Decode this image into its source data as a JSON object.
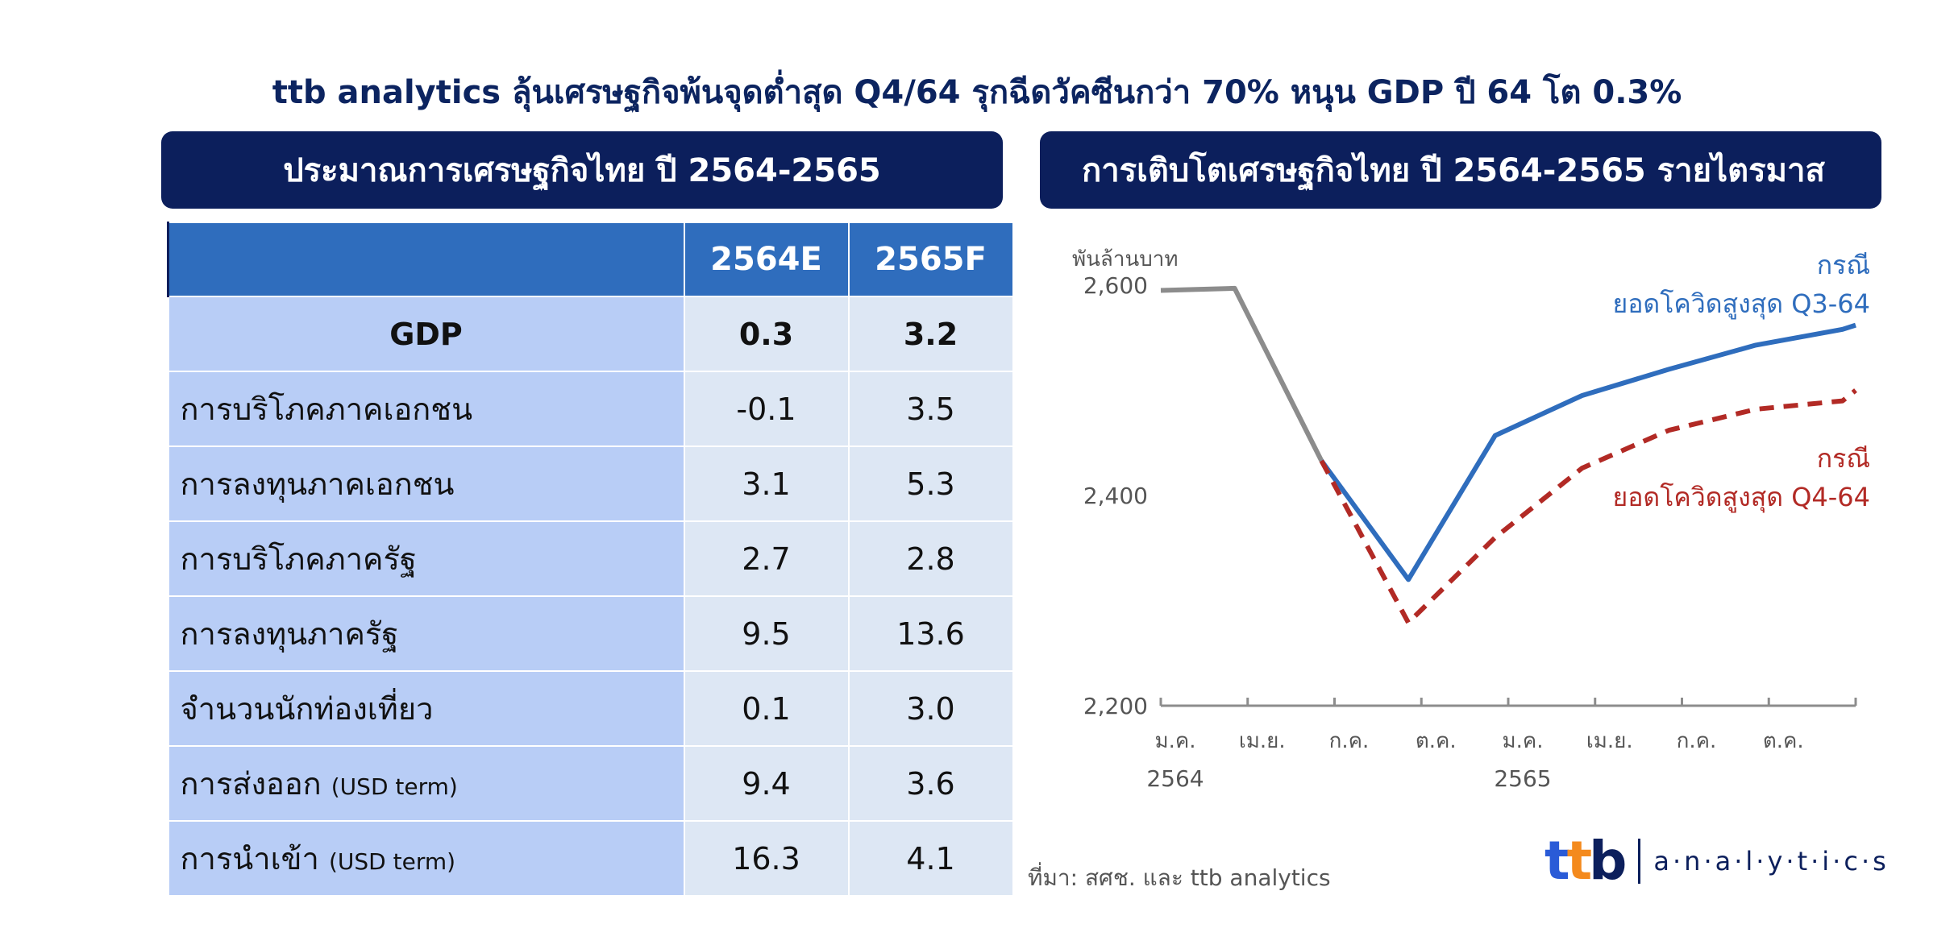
{
  "title": "ttb analytics ลุ้นเศรษฐกิจพ้นจุดต่ำสุด Q4/64 รุกฉีดวัคซีนกว่า 70% หนุน GDP ปี 64 โต 0.3%",
  "left_panel": {
    "heading": "ประมาณการเศรษฐกิจไทย ปี 2564-2565",
    "columns": [
      "",
      "2564E",
      "2565F"
    ],
    "rows": [
      {
        "label": "GDP",
        "note": "",
        "v2564": "0.3",
        "v2565": "3.2"
      },
      {
        "label": "การบริโภคภาคเอกชน",
        "note": "",
        "v2564": "-0.1",
        "v2565": "3.5"
      },
      {
        "label": "การลงทุนภาคเอกชน",
        "note": "",
        "v2564": "3.1",
        "v2565": "5.3"
      },
      {
        "label": "การบริโภคภาครัฐ",
        "note": "",
        "v2564": "2.7",
        "v2565": "2.8"
      },
      {
        "label": "การลงทุนภาครัฐ",
        "note": "",
        "v2564": "9.5",
        "v2565": "13.6"
      },
      {
        "label": "จำนวนนักท่องเที่ยว",
        "note": "",
        "v2564": "0.1",
        "v2565": "3.0"
      },
      {
        "label": "การส่งออก",
        "note": "(USD term)",
        "v2564": "9.4",
        "v2565": "3.6"
      },
      {
        "label": "การนำเข้า",
        "note": "(USD term)",
        "v2564": "16.3",
        "v2565": "4.1"
      }
    ]
  },
  "right_panel": {
    "heading": "การเติบโตเศรษฐกิจไทย ปี 2564-2565 รายไตรมาส"
  },
  "chart_data": {
    "type": "line",
    "ylabel": "พันล้านบาท",
    "ylim": [
      2200,
      2600
    ],
    "yticks": [
      "2,200",
      "2,400",
      "2,600"
    ],
    "x": [
      "ม.ค.",
      "เม.ย.",
      "ก.ค.",
      "ต.ค.",
      "ม.ค.",
      "เม.ย.",
      "ก.ค.",
      "ต.ค."
    ],
    "year_labels": [
      {
        "label": "2564",
        "at": 0
      },
      {
        "label": "2565",
        "at": 4
      }
    ],
    "series": [
      {
        "name": "",
        "color": "#8c8c8c",
        "dash": false,
        "points": [
          [
            0,
            2595
          ],
          [
            0.85,
            2597
          ],
          [
            1.85,
            2433
          ]
        ]
      },
      {
        "name": "กรณี ยอดโควิดสูงสุด Q3-64",
        "label_lines": [
          "กรณี",
          "ยอดโควิดสูงสุด Q3-64"
        ],
        "color": "#2f6dbd",
        "dash": false,
        "points": [
          [
            1.85,
            2433
          ],
          [
            2.85,
            2320
          ],
          [
            3.85,
            2457
          ],
          [
            4.85,
            2495
          ],
          [
            5.85,
            2520
          ],
          [
            6.85,
            2543
          ],
          [
            7.85,
            2558
          ],
          [
            8.0,
            2562
          ]
        ]
      },
      {
        "name": "กรณี ยอดโควิดสูงสุด Q4-64",
        "label_lines": [
          "กรณี",
          "ยอดโควิดสูงสุด Q4-64"
        ],
        "color": "#b22a25",
        "dash": true,
        "points": [
          [
            1.85,
            2433
          ],
          [
            2.85,
            2279
          ],
          [
            3.85,
            2360
          ],
          [
            4.85,
            2426
          ],
          [
            5.85,
            2462
          ],
          [
            6.85,
            2482
          ],
          [
            7.85,
            2490
          ],
          [
            8.0,
            2500
          ]
        ]
      }
    ]
  },
  "source": "ที่มา: สศช. และ ttb analytics",
  "logo": {
    "mark": "ttb",
    "text": "a·n·a·l·y·t·i·c·s"
  }
}
